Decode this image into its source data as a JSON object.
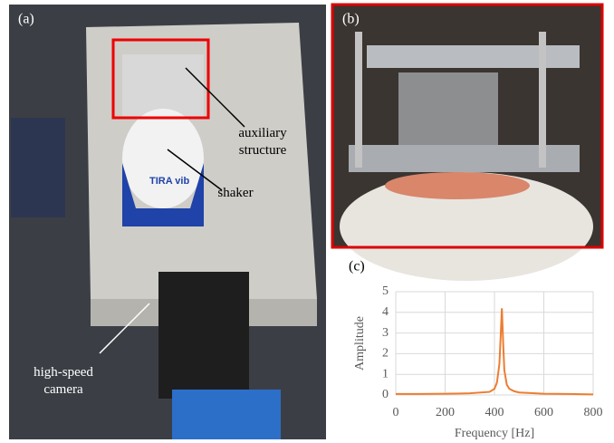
{
  "panels": {
    "a": {
      "label": "(a)",
      "auxiliary": "auxiliary structure",
      "shaker": "shaker",
      "camera": "high-speed camera",
      "brand": "TIRA vib"
    },
    "b": {
      "label": "(b)"
    },
    "c": {
      "label": "(c)"
    }
  },
  "chart_data": {
    "type": "line",
    "x_label": "Frequency [Hz]",
    "y_label": "Amplitude",
    "x": [
      0,
      100,
      200,
      300,
      380,
      400,
      410,
      420,
      425,
      430,
      435,
      440,
      450,
      460,
      480,
      500,
      600,
      700,
      800
    ],
    "values": [
      0.05,
      0.05,
      0.06,
      0.08,
      0.15,
      0.3,
      0.6,
      1.5,
      2.8,
      4.2,
      2.6,
      1.2,
      0.5,
      0.3,
      0.18,
      0.12,
      0.06,
      0.05,
      0.03
    ],
    "color": "#ed7d31",
    "xlim": [
      0,
      800
    ],
    "xticks": [
      0,
      200,
      400,
      600,
      800
    ],
    "ylim": [
      0,
      5
    ],
    "yticks": [
      0,
      1,
      2,
      3,
      4,
      5
    ],
    "grid": true
  }
}
